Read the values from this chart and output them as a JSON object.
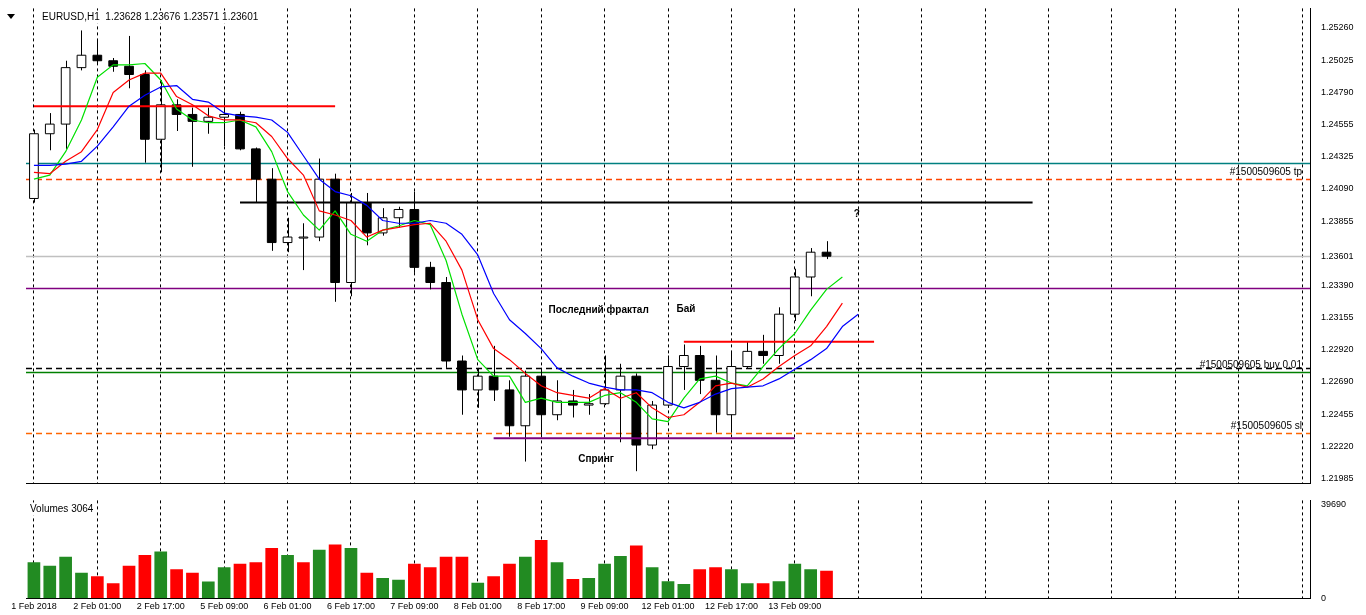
{
  "chart_data": [
    {
      "type": "candlestick",
      "title": "EURUSD,H1  1.23628 1.23676 1.23571 1.23601",
      "tick_labels": "y",
      "grid": "x",
      "categories": [
        null,
        null,
        null,
        null,
        null,
        null,
        null,
        null,
        null,
        null,
        null,
        null,
        null,
        null,
        null,
        null,
        null,
        null,
        null,
        null,
        null,
        null,
        null,
        null,
        null,
        null,
        null,
        null,
        null,
        null,
        null,
        null,
        null,
        null,
        null,
        null,
        null,
        null,
        null,
        null,
        null,
        null,
        null,
        null,
        null,
        null,
        null,
        null,
        null,
        null,
        null,
        null,
        null,
        null,
        null,
        null,
        null,
        null,
        null,
        null,
        null,
        null,
        null,
        null,
        null,
        null,
        null,
        null,
        null,
        null,
        null,
        null,
        null,
        null,
        null,
        null,
        null,
        null,
        null,
        null,
        null
      ],
      "ohlc": [
        [
          1.2402,
          1.2452,
          1.2399,
          1.2449
        ],
        [
          1.2449,
          1.2464,
          1.2437,
          1.2456
        ],
        [
          1.2456,
          1.2502,
          1.2438,
          1.2497
        ],
        [
          1.2497,
          1.2524,
          1.2495,
          1.2506
        ],
        [
          1.2506,
          1.2517,
          1.2499,
          1.2502
        ],
        [
          1.2502,
          1.2504,
          1.2494,
          1.2498
        ],
        [
          1.2498,
          1.252,
          1.2482,
          1.2492
        ],
        [
          1.2492,
          1.2495,
          1.2428,
          1.2445
        ],
        [
          1.2445,
          1.2488,
          1.2421,
          1.247
        ],
        [
          1.247,
          1.2474,
          1.2451,
          1.2463
        ],
        [
          1.2463,
          1.2468,
          1.2425,
          1.2458
        ],
        [
          1.2458,
          1.2468,
          1.2449,
          1.2461
        ],
        [
          1.2461,
          1.2474,
          1.244,
          1.2463
        ],
        [
          1.2463,
          1.2465,
          1.2437,
          1.2438
        ],
        [
          1.2438,
          1.2439,
          1.2399,
          1.2416
        ],
        [
          1.2416,
          1.2424,
          1.2364,
          1.237
        ],
        [
          1.237,
          1.2388,
          1.2363,
          1.2374
        ],
        [
          1.2374,
          1.2384,
          1.235,
          1.2374
        ],
        [
          1.2374,
          1.2431,
          1.2371,
          1.2416
        ],
        [
          1.2416,
          1.242,
          1.2327,
          1.2341
        ],
        [
          1.2341,
          1.2406,
          1.2331,
          1.2399
        ],
        [
          1.2399,
          1.2406,
          1.2368,
          1.2377
        ],
        [
          1.2377,
          1.2395,
          1.2375,
          1.2388
        ],
        [
          1.2388,
          1.2396,
          1.2381,
          1.2394
        ],
        [
          1.2394,
          1.2407,
          1.2348,
          1.2352
        ],
        [
          1.2352,
          1.2356,
          1.2336,
          1.2341
        ],
        [
          1.2341,
          1.2345,
          1.2279,
          1.2284
        ],
        [
          1.2284,
          1.2288,
          1.2245,
          1.2263
        ],
        [
          1.2263,
          1.2279,
          1.225,
          1.2273
        ],
        [
          1.2273,
          1.2295,
          1.2255,
          1.2263
        ],
        [
          1.2263,
          1.227,
          1.2229,
          1.2237
        ],
        [
          1.2237,
          1.2277,
          1.2211,
          1.2273
        ],
        [
          1.2273,
          1.2279,
          1.2229,
          1.2245
        ],
        [
          1.2245,
          1.227,
          1.2241,
          1.2255
        ],
        [
          1.2255,
          1.2263,
          1.2243,
          1.2252
        ],
        [
          1.2252,
          1.226,
          1.2245,
          1.2253
        ],
        [
          1.2253,
          1.2288,
          1.2252,
          1.2263
        ],
        [
          1.2263,
          1.2282,
          1.2225,
          1.2273
        ],
        [
          1.2273,
          1.2275,
          1.2204,
          1.2223
        ],
        [
          1.2223,
          1.2255,
          1.222,
          1.2252
        ],
        [
          1.2252,
          1.2288,
          1.225,
          1.228
        ],
        [
          1.228,
          1.2296,
          1.2263,
          1.2288
        ],
        [
          1.2288,
          1.2295,
          1.226,
          1.227
        ],
        [
          1.227,
          1.2288,
          1.2232,
          1.2245
        ],
        [
          1.2245,
          1.2291,
          1.2232,
          1.228
        ],
        [
          1.228,
          1.2298,
          1.2279,
          1.2291
        ],
        [
          1.2291,
          1.2303,
          1.2282,
          1.2288
        ],
        [
          1.2288,
          1.2323,
          1.2282,
          1.2318
        ],
        [
          1.2318,
          1.2351,
          1.2313,
          1.2345
        ],
        [
          1.2345,
          1.2366,
          1.2331,
          1.2363
        ],
        [
          1.2363,
          1.2371,
          1.2358,
          1.23601
        ],
        null,
        null,
        null,
        null,
        null,
        null,
        null,
        null,
        null,
        null,
        null,
        null,
        null,
        null,
        null,
        null,
        null,
        null,
        null,
        null,
        null,
        null,
        null,
        null,
        null,
        null,
        null,
        null,
        null,
        null
      ],
      "series": [
        {
          "type": "line",
          "color": "#0000ff",
          "values": [
            1.2426,
            1.2426,
            1.2427,
            1.2429,
            1.244,
            1.2454,
            1.2469,
            1.2477,
            1.2483,
            1.2484,
            1.2474,
            1.2472,
            1.2464,
            1.2462,
            1.2461,
            1.2459,
            1.245,
            1.2433,
            1.2416,
            1.2407,
            1.2404,
            1.2397,
            1.2386,
            1.2384,
            1.2384,
            1.2386,
            1.2384,
            1.2376,
            1.2361,
            1.2333,
            1.2314,
            1.2304,
            1.2293,
            1.2279,
            1.2273,
            1.2268,
            1.2265,
            1.2263,
            1.2263,
            1.2261,
            1.2254,
            1.225,
            1.2254,
            1.226,
            1.2264,
            1.2265,
            1.2266,
            1.2271,
            1.2278,
            1.2285,
            1.2293,
            1.2309,
            1.2318,
            null,
            null,
            null,
            null,
            null,
            null,
            null,
            null,
            null,
            null,
            null,
            null,
            null,
            null,
            null,
            null,
            null,
            null,
            null,
            null,
            null,
            null,
            null,
            null,
            null,
            null,
            null,
            null
          ]
        },
        {
          "type": "line",
          "color": "#ff0000",
          "values": [
            1.2421,
            1.242,
            1.2429,
            1.2436,
            1.2452,
            1.2479,
            1.2488,
            1.2493,
            1.2493,
            1.2476,
            1.247,
            1.2462,
            1.2459,
            1.2459,
            1.2457,
            1.2447,
            1.2431,
            1.2419,
            1.2393,
            1.239,
            1.2386,
            1.2374,
            1.2379,
            1.2381,
            1.2383,
            1.2384,
            1.2371,
            1.235,
            1.2314,
            1.2293,
            1.2285,
            1.2275,
            1.2266,
            1.2261,
            1.2259,
            1.2257,
            1.2264,
            1.2257,
            1.2261,
            1.225,
            1.2243,
            1.2245,
            1.2254,
            1.2266,
            1.2268,
            1.2265,
            1.2271,
            1.228,
            1.2288,
            1.2295,
            1.2309,
            1.2326,
            null,
            null,
            null,
            null,
            null,
            null,
            null,
            null,
            null,
            null,
            null,
            null,
            null,
            null,
            null,
            null,
            null,
            null,
            null,
            null,
            null,
            null,
            null,
            null,
            null,
            null,
            null,
            null,
            null
          ]
        },
        {
          "type": "line",
          "color": "#00e000",
          "values": [
            1.2416,
            1.2419,
            1.2436,
            1.2459,
            1.249,
            1.2499,
            1.2499,
            1.25,
            1.2488,
            1.2467,
            1.2459,
            1.2457,
            1.2457,
            1.2459,
            1.2454,
            1.2436,
            1.2407,
            1.239,
            1.2379,
            1.2393,
            1.2376,
            1.2371,
            1.2379,
            1.2382,
            1.2386,
            1.2383,
            1.2357,
            1.2318,
            1.2285,
            1.2273,
            1.2273,
            1.2254,
            1.2257,
            1.2254,
            1.2254,
            1.2254,
            1.2259,
            1.2261,
            1.2254,
            1.2242,
            1.224,
            1.2257,
            1.2271,
            1.2273,
            1.2268,
            1.2266,
            1.228,
            1.2293,
            1.2304,
            1.2321,
            1.2336,
            1.2345,
            null,
            null,
            null,
            null,
            null,
            null,
            null,
            null,
            null,
            null,
            null,
            null,
            null,
            null,
            null,
            null,
            null,
            null,
            null,
            null,
            null,
            null,
            null,
            null,
            null,
            null,
            null,
            null,
            null
          ]
        },
        {
          "type": "line",
          "color": "#ff0000",
          "values": [
            1.2469,
            null,
            null,
            null,
            null,
            null,
            null,
            null,
            null,
            null,
            null,
            null,
            null,
            null,
            null,
            null,
            null,
            null,
            null,
            1.2469,
            null,
            null,
            null,
            null,
            null,
            null,
            null,
            null,
            null,
            null,
            null,
            null,
            null,
            null,
            null,
            null,
            null,
            null,
            null,
            null,
            null,
            null,
            null,
            null,
            null,
            null,
            null,
            null,
            null,
            null,
            null,
            null,
            null,
            null,
            null,
            null,
            null,
            null,
            null,
            null,
            null,
            null,
            null,
            null,
            null,
            null,
            null,
            null,
            null,
            null,
            null,
            null,
            null,
            null,
            null,
            null,
            null,
            null,
            null,
            null,
            null
          ]
        },
        {
          "type": "line",
          "color": "#000000",
          "values": [
            null,
            null,
            null,
            null,
            null,
            null,
            null,
            null,
            null,
            null,
            null,
            null,
            null,
            1.2399,
            null,
            null,
            null,
            null,
            null,
            null,
            null,
            null,
            null,
            null,
            null,
            null,
            null,
            null,
            null,
            null,
            null,
            null,
            null,
            null,
            null,
            null,
            null,
            null,
            null,
            null,
            null,
            null,
            null,
            null,
            null,
            null,
            null,
            null,
            null,
            null,
            null,
            null,
            null,
            null,
            null,
            null,
            null,
            null,
            null,
            null,
            null,
            null,
            null,
            1.2399,
            null,
            null,
            null,
            null,
            null,
            null,
            null,
            null,
            null,
            null,
            null,
            null,
            null,
            null,
            null,
            null,
            null
          ]
        },
        {
          "type": "line",
          "color": "#ff0000",
          "values": [
            null,
            null,
            null,
            null,
            null,
            null,
            null,
            null,
            null,
            null,
            null,
            null,
            null,
            null,
            null,
            null,
            null,
            null,
            null,
            null,
            null,
            null,
            null,
            null,
            null,
            null,
            null,
            null,
            null,
            null,
            null,
            null,
            null,
            null,
            null,
            null,
            null,
            null,
            null,
            null,
            null,
            1.2298,
            null,
            null,
            null,
            null,
            null,
            null,
            null,
            null,
            null,
            null,
            null,
            1.2298,
            null,
            null,
            null,
            null,
            null,
            null,
            null,
            null,
            null,
            null,
            null,
            null,
            null,
            null,
            null,
            null,
            null,
            null,
            null,
            null,
            null,
            null,
            null,
            null,
            null,
            null,
            null
          ]
        },
        {
          "type": "line",
          "color": "#800080",
          "values": [
            null,
            null,
            null,
            null,
            null,
            null,
            null,
            null,
            null,
            null,
            null,
            null,
            null,
            null,
            null,
            null,
            null,
            null,
            null,
            null,
            null,
            null,
            null,
            null,
            null,
            null,
            null,
            null,
            null,
            1.2228,
            null,
            null,
            null,
            null,
            null,
            null,
            null,
            null,
            null,
            null,
            null,
            null,
            null,
            null,
            null,
            null,
            null,
            null,
            1.2228,
            null,
            null,
            null,
            null,
            null,
            null,
            null,
            null,
            null,
            null,
            null,
            null,
            null,
            null,
            null,
            null,
            null,
            null,
            null,
            null,
            null,
            null,
            null,
            null,
            null,
            null,
            null,
            null,
            null,
            null,
            null,
            null
          ]
        }
      ],
      "ylim": [
        1.2195,
        1.254
      ],
      "yticks": [
        1.21985,
        {
          "value": 1.2222,
          "label": "1.22220"
        },
        1.22455,
        {
          "value": 1.2269,
          "label": "1.22690"
        },
        {
          "value": 1.2292,
          "label": "1.22920"
        },
        1.23155,
        {
          "value": 1.2339,
          "label": "1.23390"
        },
        1.23601,
        1.23855,
        {
          "value": 1.2409,
          "label": "1.24090"
        },
        1.24325,
        1.24555,
        {
          "value": 1.2479,
          "label": "1.24790"
        },
        1.25025,
        {
          "value": 1.2526,
          "label": "1.25260"
        }
      ],
      "ref_lines": [
        {
          "axis": "y",
          "value": 1.2428,
          "color": "#008080"
        },
        {
          "axis": "y",
          "value": 1.2416,
          "label": "#1500509605 tp",
          "color": "#ff4500",
          "line_style": "dashed"
        },
        {
          "axis": "y",
          "value": 1.236,
          "color": "#c0c0c0"
        },
        {
          "axis": "y",
          "value": 1.2337,
          "color": "#800080"
        },
        {
          "axis": "y",
          "value": 1.2279,
          "color": "#000000",
          "line_style": "dashed"
        },
        {
          "axis": "y",
          "value": 1.2276,
          "label": "#1500509605 buy 0.01",
          "color": "#008000"
        },
        {
          "axis": "y",
          "value": 1.2232,
          "label": "#1500509605 sl",
          "color": "#ff6600",
          "line_style": "dashed"
        }
      ],
      "annotations": [
        "Последний фрактал",
        "Бай",
        "Спринг",
        "?"
      ]
    },
    {
      "type": "bar",
      "title": "Volumes 3064",
      "grid": "x",
      "categories": [
        "1 Feb 2018",
        null,
        null,
        null,
        "2 Feb 01:00",
        null,
        null,
        null,
        "2 Feb 17:00",
        null,
        null,
        null,
        "5 Feb 09:00",
        null,
        null,
        null,
        "6 Feb 01:00",
        null,
        null,
        null,
        "6 Feb 17:00",
        null,
        null,
        null,
        "7 Feb 09:00",
        null,
        null,
        null,
        "8 Feb 01:00",
        null,
        null,
        null,
        "8 Feb 17:00",
        null,
        null,
        null,
        "9 Feb 09:00",
        null,
        null,
        null,
        "12 Feb 01:00",
        null,
        null,
        null,
        "12 Feb 17:00",
        null,
        null,
        null,
        "13 Feb 09:00",
        null,
        null,
        null,
        null,
        null,
        null,
        null,
        null,
        null,
        null,
        null,
        null,
        null,
        null,
        null,
        null,
        null,
        null,
        null,
        null,
        null,
        null,
        null,
        null,
        null,
        null,
        null,
        null,
        null,
        null,
        null,
        null
      ],
      "values": [
        15300,
        13800,
        17600,
        10800,
        9300,
        6300,
        13800,
        18300,
        19800,
        12300,
        10800,
        7100,
        13100,
        14600,
        15300,
        21300,
        18300,
        15300,
        20600,
        22800,
        21300,
        10800,
        8600,
        7800,
        14600,
        13100,
        17600,
        17600,
        6600,
        9300,
        14600,
        17600,
        24700,
        15300,
        8100,
        8600,
        14600,
        17900,
        22400,
        13100,
        7200,
        6000,
        12300,
        13100,
        12300,
        6300,
        6300,
        7200,
        14600,
        12300,
        11700,
        null,
        null,
        null,
        null,
        null,
        null,
        null,
        null,
        null,
        null,
        null,
        null,
        null,
        null,
        null,
        null,
        null,
        null,
        null,
        null,
        null,
        null,
        null,
        null,
        null,
        null,
        null,
        null,
        null,
        null
      ],
      "colors": [
        "#228b22",
        "#228b22",
        "#228b22",
        "#228b22",
        "#ff0000",
        "#ff0000",
        "#ff0000",
        "#ff0000",
        "#228b22",
        "#ff0000",
        "#ff0000",
        "#228b22",
        "#228b22",
        "#ff0000",
        "#ff0000",
        "#ff0000",
        "#228b22",
        "#ff0000",
        "#228b22",
        "#ff0000",
        "#228b22",
        "#ff0000",
        "#228b22",
        "#228b22",
        "#ff0000",
        "#ff0000",
        "#ff0000",
        "#ff0000",
        "#228b22",
        "#ff0000",
        "#ff0000",
        "#228b22",
        "#ff0000",
        "#228b22",
        "#ff0000",
        "#228b22",
        "#228b22",
        "#228b22",
        "#ff0000",
        "#228b22",
        "#228b22",
        "#228b22",
        "#ff0000",
        "#ff0000",
        "#228b22",
        "#228b22",
        "#ff0000",
        "#228b22",
        "#228b22",
        "#228b22",
        "#ff0000",
        null,
        null,
        null,
        null,
        null,
        null,
        null,
        null,
        null,
        null,
        null,
        null,
        null,
        null,
        null,
        null,
        null,
        null,
        null,
        null,
        null,
        null,
        null,
        null,
        null,
        null,
        null,
        null,
        null,
        null
      ],
      "ylim": [
        0,
        41500
      ],
      "yticks": [
        0,
        39690
      ]
    }
  ]
}
